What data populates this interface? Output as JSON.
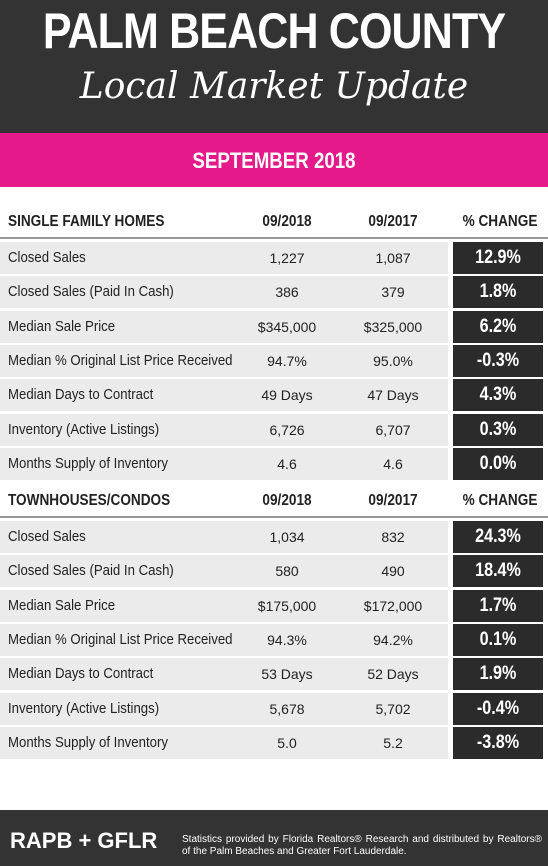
{
  "header": {
    "title": "PALM BEACH COUNTY",
    "subtitle": "Local Market Update",
    "month": "SEPTEMBER 2018"
  },
  "sections": [
    {
      "columns": [
        "SINGLE FAMILY HOMES",
        "09/2018",
        "09/2017",
        "% CHANGE"
      ],
      "rows": [
        [
          "Closed Sales",
          "1,227",
          "1,087",
          "12.9%"
        ],
        [
          "Closed Sales (Paid In Cash)",
          "386",
          "379",
          "1.8%"
        ],
        [
          "Median Sale Price",
          "$345,000",
          "$325,000",
          "6.2%"
        ],
        [
          "Median % Original List Price Received",
          "94.7%",
          "95.0%",
          "-0.3%"
        ],
        [
          "Median Days to Contract",
          "49 Days",
          "47 Days",
          "4.3%"
        ],
        [
          "Inventory (Active Listings)",
          "6,726",
          "6,707",
          "0.3%"
        ],
        [
          "Months Supply of Inventory",
          "4.6",
          "4.6",
          "0.0%"
        ]
      ]
    },
    {
      "columns": [
        "TOWNHOUSES/CONDOS",
        "09/2018",
        "09/2017",
        "% CHANGE"
      ],
      "rows": [
        [
          "Closed Sales",
          "1,034",
          "832",
          "24.3%"
        ],
        [
          "Closed Sales (Paid In Cash)",
          "580",
          "490",
          "18.4%"
        ],
        [
          "Median Sale Price",
          "$175,000",
          "$172,000",
          "1.7%"
        ],
        [
          "Median % Original List Price Received",
          "94.3%",
          "94.2%",
          "0.1%"
        ],
        [
          "Median Days to Contract",
          "53 Days",
          "52 Days",
          "1.9%"
        ],
        [
          "Inventory (Active Listings)",
          "5,678",
          "5,702",
          "-0.4%"
        ],
        [
          "Months Supply of Inventory",
          "5.0",
          "5.2",
          "-3.8%"
        ]
      ]
    }
  ],
  "footer": {
    "brand": "RAPB + GFLR",
    "note": "Statistics provided by Florida Realtors® Research and distributed by Realtors® of the Palm Beaches and Greater Fort Lauderdale."
  }
}
